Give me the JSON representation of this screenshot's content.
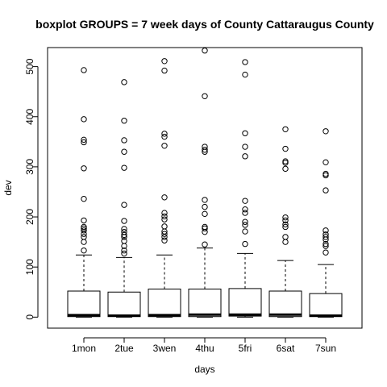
{
  "chart_data": {
    "type": "boxplot",
    "title": "boxplot GROUPS = 7 week days of County Cattaraugus County",
    "xlabel": "days",
    "ylabel": "dev",
    "categories": [
      "1mon",
      "2tue",
      "3wen",
      "4thu",
      "5fri",
      "6sat",
      "7sun"
    ],
    "y_ticks": [
      0,
      100,
      200,
      300,
      400,
      500
    ],
    "y_tick_labels": [
      "0",
      "100",
      "200",
      "300",
      "400",
      "500"
    ],
    "ylim": [
      -22,
      538
    ],
    "grid": false,
    "legend": "none",
    "boxes": [
      {
        "category": "1mon",
        "lower_whisker": 0,
        "q1": 1,
        "median": 4,
        "q3": 52,
        "upper_whisker": 124,
        "outliers": [
          133,
          150,
          160,
          166,
          173,
          177,
          180,
          193,
          236,
          297,
          349,
          354,
          395,
          493
        ]
      },
      {
        "category": "2tue",
        "lower_whisker": 0,
        "q1": 1,
        "median": 3,
        "q3": 50,
        "upper_whisker": 119,
        "outliers": [
          127,
          133,
          142,
          152,
          160,
          164,
          170,
          176,
          192,
          224,
          298,
          330,
          353,
          392,
          469
        ]
      },
      {
        "category": "3wen",
        "lower_whisker": 0,
        "q1": 1,
        "median": 4,
        "q3": 56,
        "upper_whisker": 124,
        "outliers": [
          153,
          160,
          166,
          171,
          181,
          195,
          201,
          208,
          239,
          342,
          360,
          366,
          492,
          511
        ]
      },
      {
        "category": "4thu",
        "lower_whisker": 0,
        "q1": 1,
        "median": 5,
        "q3": 56,
        "upper_whisker": 138,
        "outliers": [
          145,
          170,
          177,
          180,
          206,
          220,
          234,
          330,
          334,
          340,
          441,
          532
        ]
      },
      {
        "category": "5fri",
        "lower_whisker": 0,
        "q1": 2,
        "median": 5,
        "q3": 57,
        "upper_whisker": 127,
        "outliers": [
          146,
          171,
          184,
          190,
          208,
          215,
          232,
          321,
          340,
          367,
          484,
          509
        ]
      },
      {
        "category": "6sat",
        "lower_whisker": 0,
        "q1": 1,
        "median": 5,
        "q3": 52,
        "upper_whisker": 113,
        "outliers": [
          150,
          160,
          180,
          185,
          193,
          199,
          296,
          308,
          311,
          336,
          375
        ]
      },
      {
        "category": "7sun",
        "lower_whisker": 0,
        "q1": 1,
        "median": 3,
        "q3": 47,
        "upper_whisker": 105,
        "outliers": [
          129,
          142,
          146,
          155,
          160,
          165,
          173,
          253,
          283,
          286,
          309,
          371
        ]
      }
    ],
    "colors": {
      "box_fill": "#ffffff",
      "stroke": "#000000",
      "background": "#ffffff"
    }
  }
}
